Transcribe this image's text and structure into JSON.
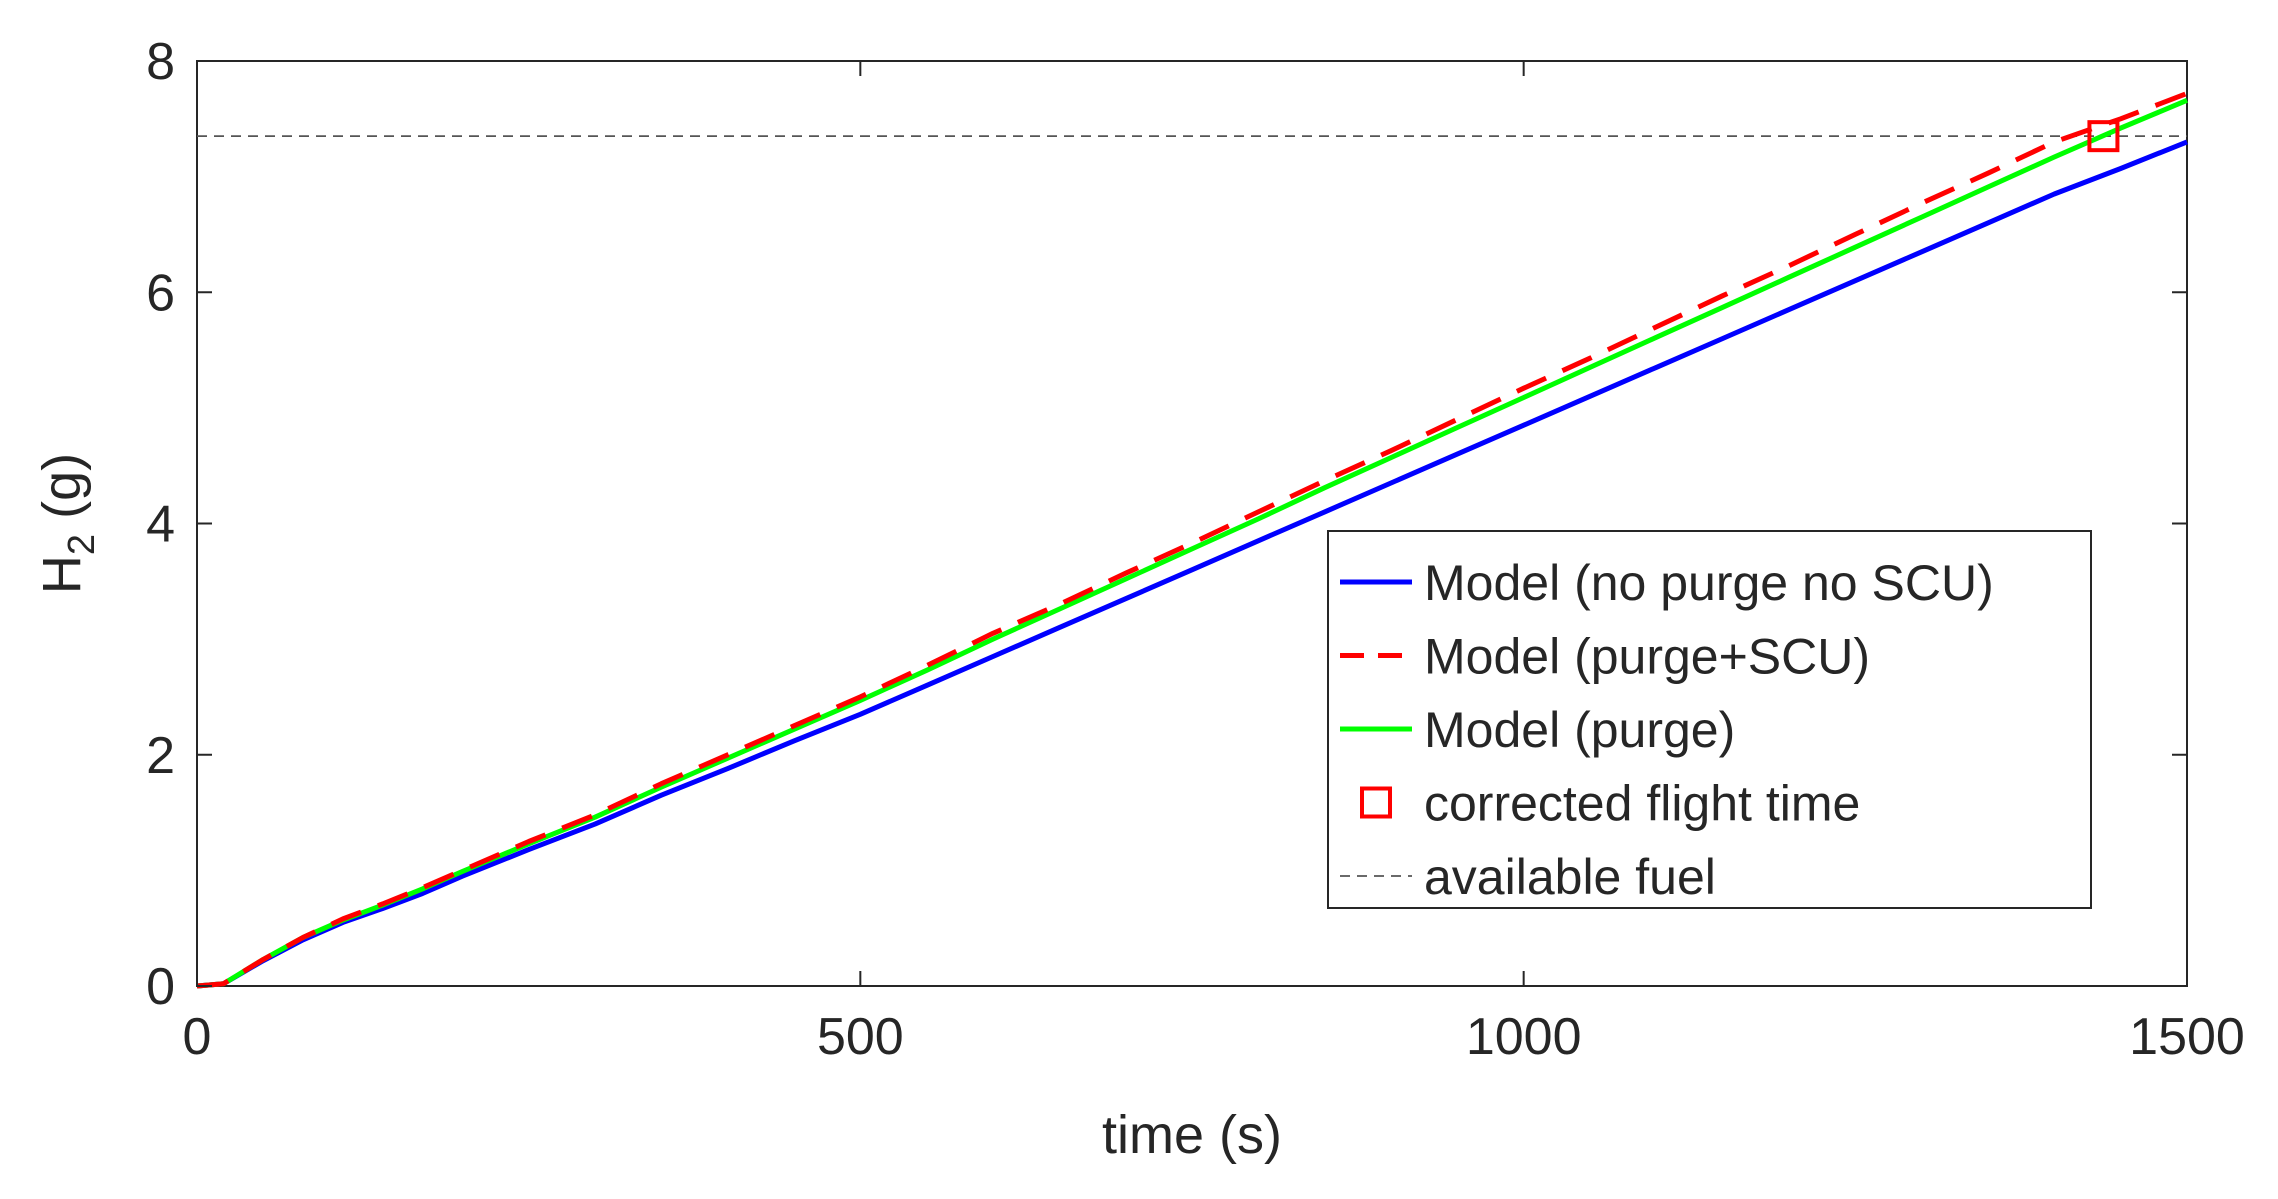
{
  "chart_data": {
    "type": "line",
    "xlabel": "time (s)",
    "ylabel_main": "H",
    "ylabel_sub": "2",
    "ylabel_unit": " (g)",
    "xlim": [
      0,
      1500
    ],
    "ylim": [
      0,
      8
    ],
    "xticks": [
      0,
      500,
      1000,
      1500
    ],
    "yticks": [
      0,
      2,
      4,
      6,
      8
    ],
    "grid": false,
    "legend_position": "bottom-right",
    "series": [
      {
        "name": "Model (no purge no SCU)",
        "color": "#0000ff",
        "dash": "solid",
        "x": [
          0,
          20,
          50,
          80,
          110,
          140,
          170,
          200,
          250,
          300,
          350,
          400,
          450,
          500,
          550,
          600,
          650,
          700,
          750,
          800,
          850,
          900,
          950,
          1000,
          1050,
          1100,
          1150,
          1200,
          1250,
          1300,
          1350,
          1400,
          1450,
          1500
        ],
        "y": [
          0,
          0.02,
          0.22,
          0.4,
          0.55,
          0.67,
          0.8,
          0.95,
          1.18,
          1.4,
          1.65,
          1.88,
          2.12,
          2.35,
          2.6,
          2.85,
          3.1,
          3.35,
          3.6,
          3.85,
          4.1,
          4.35,
          4.6,
          4.85,
          5.1,
          5.35,
          5.6,
          5.85,
          6.1,
          6.35,
          6.6,
          6.85,
          7.07,
          7.3
        ]
      },
      {
        "name": "Model (purge+SCU)",
        "color": "#ff0000",
        "dash": "dashed",
        "x": [
          0,
          20,
          50,
          80,
          110,
          140,
          170,
          200,
          250,
          300,
          350,
          400,
          450,
          500,
          550,
          600,
          650,
          700,
          750,
          800,
          850,
          900,
          950,
          1000,
          1050,
          1100,
          1150,
          1200,
          1250,
          1300,
          1350,
          1400,
          1450,
          1500
        ],
        "y": [
          0,
          0.02,
          0.23,
          0.42,
          0.58,
          0.71,
          0.85,
          1.0,
          1.25,
          1.48,
          1.75,
          2.0,
          2.25,
          2.5,
          2.77,
          3.05,
          3.3,
          3.57,
          3.83,
          4.1,
          4.37,
          4.63,
          4.9,
          5.17,
          5.43,
          5.7,
          5.97,
          6.23,
          6.5,
          6.77,
          7.03,
          7.3,
          7.5,
          7.72
        ]
      },
      {
        "name": "Model (purge)",
        "color": "#00ff00",
        "dash": "solid",
        "x": [
          0,
          20,
          50,
          80,
          110,
          140,
          170,
          200,
          250,
          300,
          350,
          400,
          450,
          500,
          550,
          600,
          650,
          700,
          750,
          800,
          850,
          900,
          950,
          1000,
          1050,
          1100,
          1150,
          1200,
          1250,
          1300,
          1350,
          1400,
          1450,
          1500
        ],
        "y": [
          0,
          0.02,
          0.23,
          0.42,
          0.57,
          0.7,
          0.84,
          0.99,
          1.23,
          1.46,
          1.72,
          1.97,
          2.22,
          2.47,
          2.73,
          3.0,
          3.26,
          3.52,
          3.78,
          4.04,
          4.31,
          4.57,
          4.83,
          5.09,
          5.35,
          5.61,
          5.87,
          6.13,
          6.39,
          6.65,
          6.91,
          7.17,
          7.42,
          7.66
        ]
      }
    ],
    "marker": {
      "name": "corrected flight time",
      "color": "#ff0000",
      "shape": "square",
      "x": 1437,
      "y": 7.35
    },
    "reference_line": {
      "name": "available fuel",
      "color": "#555555",
      "dash": "dashed",
      "y": 7.35
    }
  }
}
